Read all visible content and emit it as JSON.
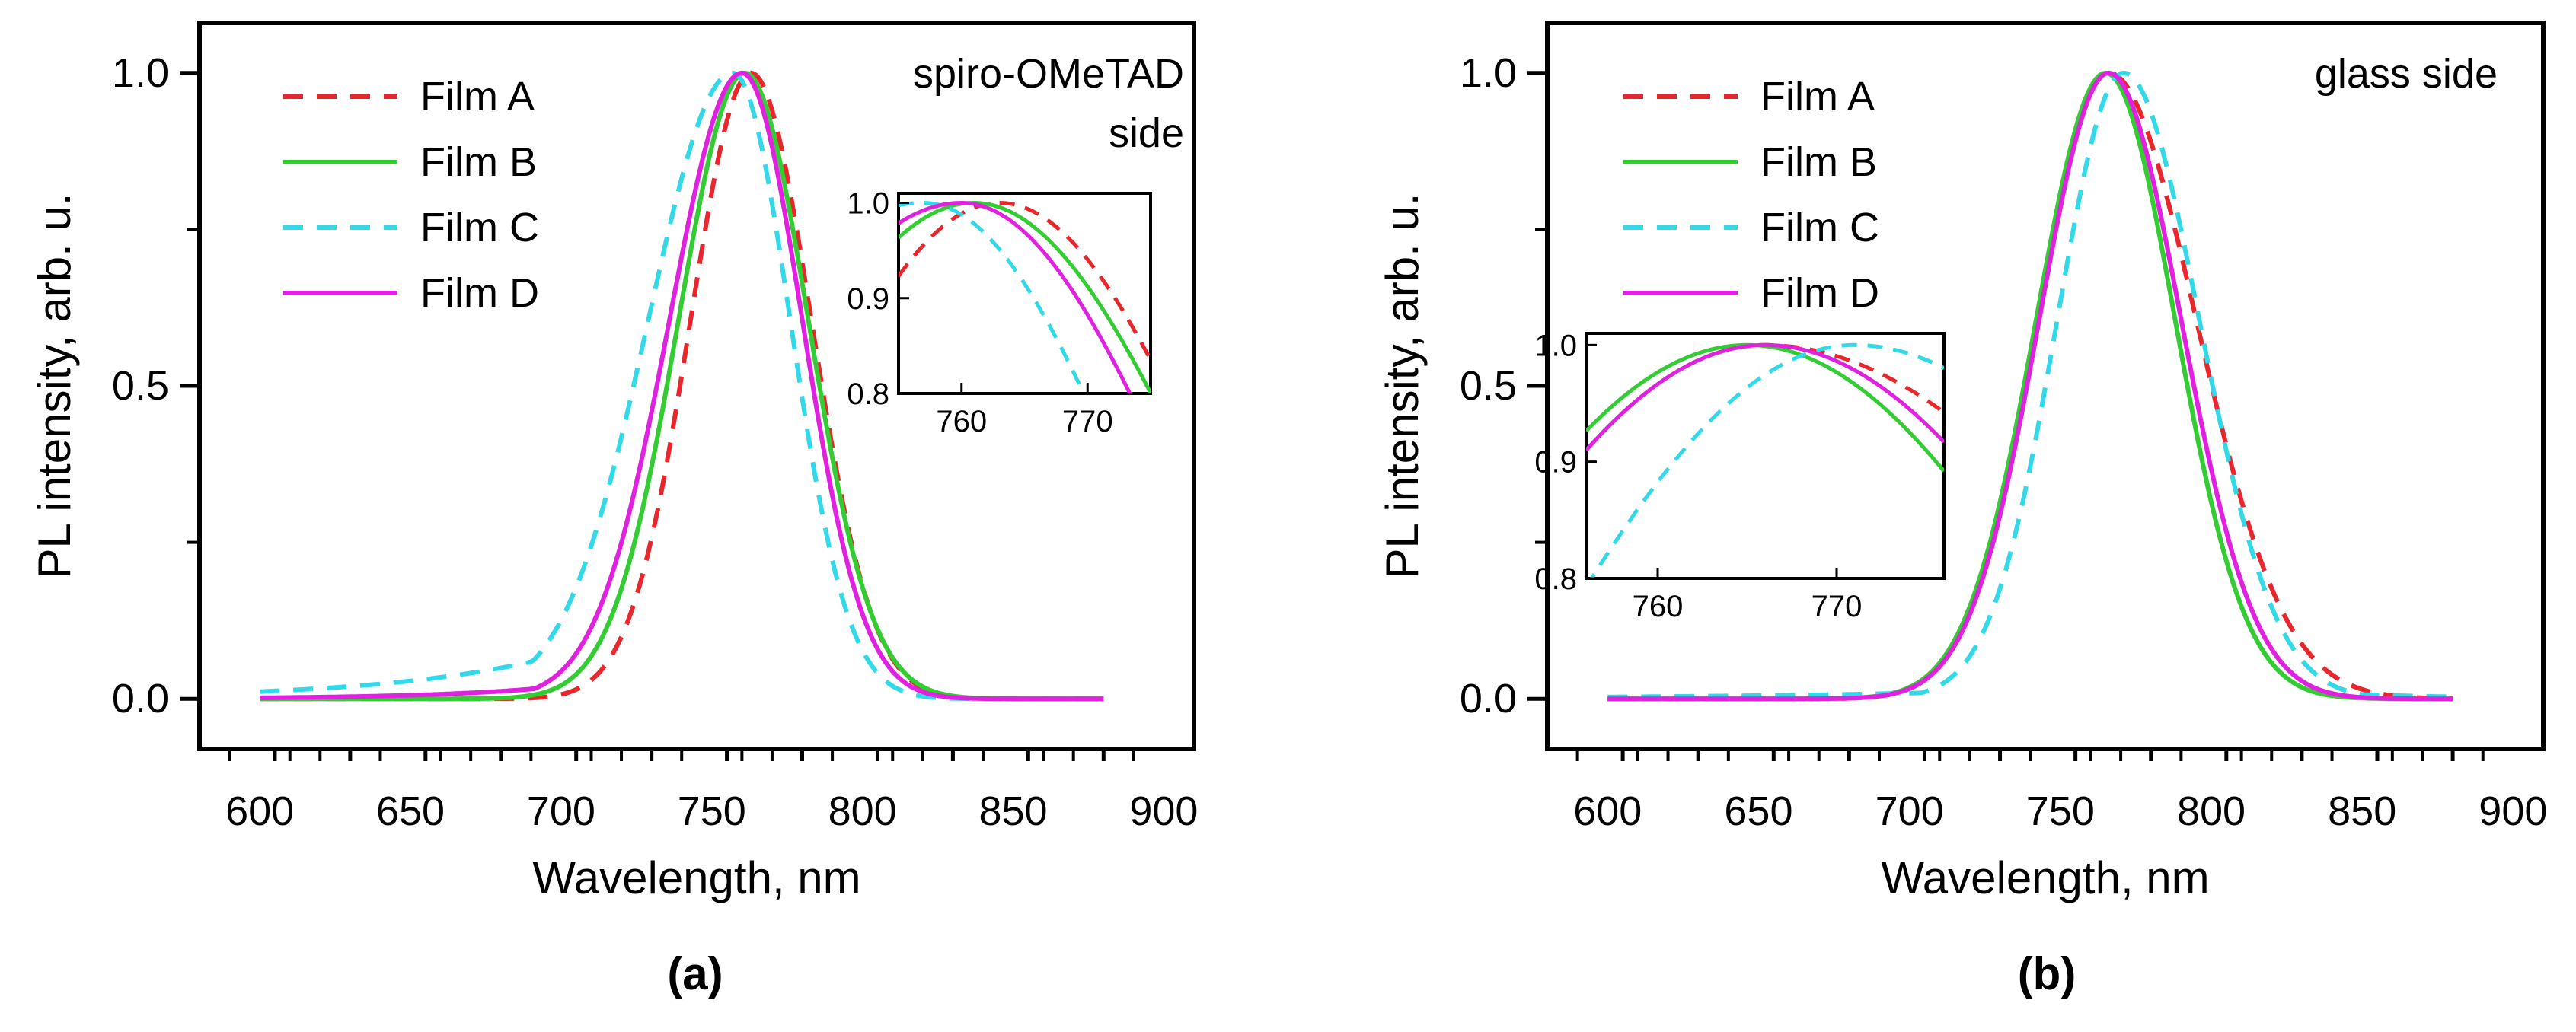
{
  "chart_data": [
    {
      "panel": "(a)",
      "type": "line",
      "xlabel": "Wavelength, nm",
      "ylabel": "PL intensity, arb. u.",
      "xlim": [
        580,
        910
      ],
      "ylim": [
        -0.08,
        1.08
      ],
      "xticks": [
        600,
        650,
        700,
        750,
        800,
        850,
        900
      ],
      "xtick_labels": [
        "600",
        "650",
        "700",
        "750",
        "800",
        "850",
        "900"
      ],
      "yticks": [
        0.0,
        0.5,
        1.0
      ],
      "ytick_labels": [
        "0.0",
        "0.5",
        "1.0"
      ],
      "annotation_lines": [
        "spiro-OMeTAD",
        "side"
      ],
      "series": [
        {
          "name": "Film A",
          "color": "#e8262b",
          "dash": "dashed",
          "peak": 763,
          "sigma_left": 20,
          "sigma_right": 20,
          "left_floor": 0.0,
          "left_width": 40,
          "right_floor": 0.0,
          "right_width": 30
        },
        {
          "name": "Film B",
          "color": "#33cc33",
          "dash": "solid",
          "peak": 761,
          "sigma_left": 22,
          "sigma_right": 21,
          "left_floor": 0.0,
          "left_width": 40,
          "right_floor": 0.0,
          "right_width": 30
        },
        {
          "name": "Film C",
          "color": "#33d9e8",
          "dash": "dashed",
          "peak": 757,
          "sigma_left": 28,
          "sigma_right": 19,
          "left_floor": 0.2,
          "left_width": 55,
          "right_floor": 0.0,
          "right_width": 30
        },
        {
          "name": "Film D",
          "color": "#e022e0",
          "dash": "solid",
          "peak": 760,
          "sigma_left": 24,
          "sigma_right": 20,
          "left_floor": 0.09,
          "left_width": 40,
          "right_floor": 0.0,
          "right_width": 30
        }
      ],
      "inset": {
        "xlim": [
          755,
          775
        ],
        "ylim": [
          0.8,
          1.01
        ],
        "xticks": [
          760,
          770
        ],
        "xtick_labels": [
          "760",
          "770"
        ],
        "yticks": [
          0.8,
          0.9,
          1.0
        ],
        "ytick_labels": [
          "0.8",
          "0.9",
          "1.0"
        ]
      }
    },
    {
      "panel": "(b)",
      "type": "line",
      "xlabel": "Wavelength, nm",
      "ylabel": "PL intensity, arb. u.",
      "xlim": [
        580,
        910
      ],
      "ylim": [
        -0.08,
        1.08
      ],
      "xticks": [
        600,
        650,
        700,
        750,
        800,
        850,
        900
      ],
      "xtick_labels": [
        "600",
        "650",
        "700",
        "750",
        "800",
        "850",
        "900"
      ],
      "yticks": [
        0.0,
        0.5,
        1.0
      ],
      "ytick_labels": [
        "0.0",
        "0.5",
        "1.0"
      ],
      "annotation_lines": [
        "glass side"
      ],
      "series": [
        {
          "name": "Film A",
          "color": "#e8262b",
          "dash": "dashed",
          "peak": 766,
          "sigma_left": 23,
          "sigma_right": 29,
          "left_floor": 0.0,
          "left_width": 40,
          "right_floor": 0.0,
          "right_width": 30
        },
        {
          "name": "Film B",
          "color": "#33cc33",
          "dash": "solid",
          "peak": 765,
          "sigma_left": 23,
          "sigma_right": 23,
          "left_floor": 0.0,
          "left_width": 40,
          "right_floor": 0.0,
          "right_width": 30
        },
        {
          "name": "Film C",
          "color": "#33d9e8",
          "dash": "dashed",
          "peak": 771,
          "sigma_left": 22,
          "sigma_right": 25,
          "left_floor": 0.02,
          "left_width": 90,
          "right_floor": 0.05,
          "right_width": 40
        },
        {
          "name": "Film D",
          "color": "#e022e0",
          "dash": "solid",
          "peak": 766,
          "sigma_left": 23,
          "sigma_right": 24,
          "left_floor": 0.0,
          "left_width": 40,
          "right_floor": 0.0,
          "right_width": 30
        }
      ],
      "inset": {
        "xlim": [
          756,
          776
        ],
        "ylim": [
          0.8,
          1.01
        ],
        "xticks": [
          760,
          770
        ],
        "xtick_labels": [
          "760",
          "770"
        ],
        "yticks": [
          0.8,
          0.9,
          1.0
        ],
        "ytick_labels": [
          "0.8",
          "0.9",
          "1.0"
        ]
      }
    }
  ]
}
